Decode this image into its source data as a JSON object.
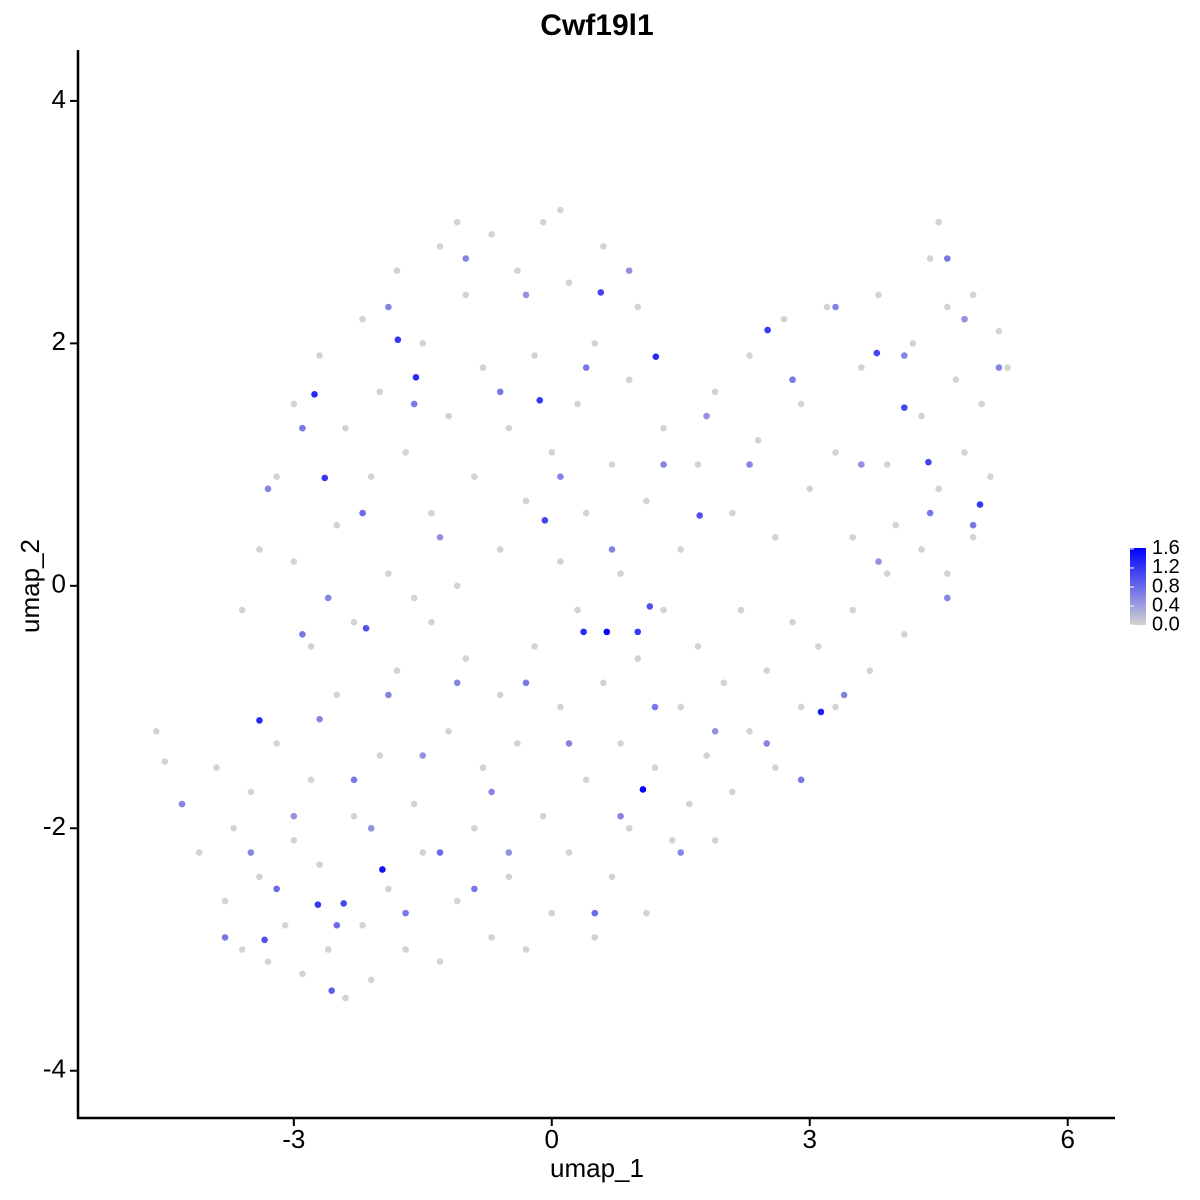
{
  "chart_data": {
    "type": "scatter",
    "title": "Cwf19l1",
    "x_label": "umap_1",
    "y_label": "umap_2",
    "xlim": [
      -5.51,
      6.55
    ],
    "ylim": [
      -4.39,
      4.42
    ],
    "xticks": [
      -3,
      0,
      3,
      6
    ],
    "yticks": [
      -4,
      -2,
      0,
      2,
      4
    ],
    "color_low": "#d3d3d3",
    "color_high": "#0000ff",
    "colorlim": [
      0,
      1.62
    ],
    "colorticks": [
      {
        "value": 0,
        "label": "0.0"
      },
      0.4,
      0.8,
      1.2,
      1.6
    ],
    "x": [
      -4.6,
      -4.5,
      -4.3,
      -4.1,
      -3.9,
      -3.8,
      -3.7,
      -3.6,
      -3.5,
      -3.4,
      -3.3,
      -3.2,
      -3.1,
      -3.0,
      -2.9,
      -2.8,
      -2.7,
      -2.6,
      -2.5,
      -2.4,
      -2.3,
      -2.2,
      -2.1,
      -2.0,
      -1.9,
      -1.8,
      -1.7,
      -1.6,
      -1.5,
      -1.4,
      -1.3,
      -1.2,
      -1.1,
      -1.0,
      -0.9,
      -0.8,
      -0.7,
      -0.6,
      -0.5,
      -0.4,
      -0.3,
      -0.2,
      -0.1,
      0.0,
      0.1,
      0.2,
      0.3,
      0.4,
      0.5,
      0.6,
      0.7,
      0.8,
      0.9,
      1.0,
      1.1,
      1.2,
      1.3,
      1.4,
      1.5,
      1.6,
      1.7,
      1.8,
      1.9,
      2.0,
      2.1,
      2.2,
      2.3,
      2.5,
      2.6,
      2.8,
      2.9,
      3.1,
      3.3,
      3.5,
      3.7,
      3.9,
      4.1,
      4.3,
      4.6,
      4.9,
      -3.6,
      -3.4,
      -3.2,
      -3.0,
      -3.0,
      -2.8,
      -2.7,
      -2.5,
      -2.4,
      -2.3,
      -2.2,
      -2.1,
      -2.0,
      -1.9,
      -1.8,
      -1.7,
      -1.6,
      -1.5,
      -1.4,
      -1.3,
      -1.2,
      -1.1,
      -1.0,
      -0.9,
      -0.8,
      -0.7,
      -0.6,
      -0.5,
      -0.4,
      -0.3,
      -0.2,
      -0.1,
      0.0,
      0.1,
      0.2,
      0.3,
      0.4,
      0.5,
      0.6,
      0.7,
      0.8,
      0.9,
      1.0,
      1.1,
      1.3,
      1.5,
      1.7,
      1.9,
      2.1,
      2.3,
      2.4,
      2.6,
      2.7,
      2.9,
      3.0,
      3.2,
      3.3,
      3.5,
      3.6,
      3.8,
      3.9,
      4.0,
      4.2,
      4.3,
      4.4,
      4.5,
      4.6,
      4.7,
      4.8,
      4.9,
      5.0,
      5.1,
      5.2,
      5.3,
      4.5,
      0.1,
      -1.1,
      -4.3,
      -3.8,
      -3.5,
      -3.2,
      -3.0,
      -2.9,
      -2.7,
      -2.5,
      -2.3,
      -2.1,
      -1.9,
      -1.7,
      -1.5,
      -1.3,
      -1.1,
      -0.9,
      -0.7,
      -0.5,
      -0.3,
      0.2,
      0.5,
      0.8,
      1.2,
      1.5,
      1.9,
      2.5,
      2.9,
      3.4,
      3.8,
      4.6,
      4.9,
      -3.3,
      -2.9,
      -2.6,
      -2.2,
      -1.9,
      -1.6,
      -1.3,
      -1.0,
      -0.6,
      -0.3,
      0.1,
      0.4,
      0.7,
      0.9,
      1.3,
      1.8,
      2.3,
      2.8,
      3.3,
      3.6,
      4.1,
      4.4,
      4.8,
      5.2,
      4.6,
      -1.97,
      1.06,
      0.64,
      0.37,
      1.0,
      -3.4,
      -2.76,
      -2.64,
      -1.79,
      -1.58,
      -0.14,
      0.57,
      1.21,
      2.51,
      3.78,
      4.38,
      4.1,
      4.98,
      3.13,
      -2.72,
      -2.42,
      -3.34,
      -0.08,
      1.14,
      -2.16,
      1.72,
      -2.56
    ],
    "y": [
      -1.2,
      -1.45,
      -1.8,
      -2.2,
      -1.5,
      -2.6,
      -2.0,
      -3.0,
      -1.7,
      -2.4,
      -3.1,
      -1.3,
      -2.8,
      -2.1,
      -3.2,
      -1.6,
      -2.3,
      -3.0,
      -0.9,
      -3.4,
      -1.9,
      -2.8,
      -3.25,
      -1.4,
      -2.5,
      -0.7,
      -3.0,
      -1.8,
      -2.2,
      -0.3,
      -3.1,
      -1.2,
      -2.6,
      -0.6,
      -2.0,
      -1.5,
      -2.9,
      -0.9,
      -2.4,
      -1.3,
      -3.0,
      -0.5,
      -1.9,
      -2.7,
      -1.0,
      -2.2,
      -0.2,
      -1.6,
      -2.9,
      -0.8,
      -2.4,
      -1.3,
      -2.0,
      -0.6,
      -2.7,
      -1.5,
      -0.2,
      -2.1,
      -1.0,
      -1.8,
      -0.5,
      -1.4,
      -2.1,
      -0.8,
      -1.7,
      -0.2,
      -1.2,
      -0.7,
      -1.5,
      -0.3,
      -1.0,
      -0.5,
      -1.0,
      -0.2,
      -0.7,
      0.1,
      -0.4,
      0.3,
      0.1,
      0.4,
      -0.2,
      0.3,
      0.9,
      0.2,
      1.5,
      -0.5,
      1.9,
      0.5,
      1.3,
      -0.3,
      2.2,
      0.9,
      1.6,
      0.1,
      2.6,
      1.1,
      -0.1,
      2.0,
      0.6,
      2.8,
      1.4,
      0.0,
      2.4,
      0.9,
      1.8,
      2.9,
      0.3,
      1.3,
      2.6,
      0.7,
      1.9,
      3.0,
      1.1,
      0.2,
      2.5,
      1.5,
      0.6,
      2.0,
      2.8,
      1.0,
      0.1,
      1.7,
      2.3,
      0.7,
      1.3,
      0.3,
      1.0,
      1.6,
      0.6,
      1.9,
      1.2,
      0.4,
      2.2,
      1.5,
      0.8,
      2.3,
      1.1,
      0.4,
      1.8,
      2.4,
      1.0,
      0.5,
      2.0,
      1.4,
      2.7,
      0.8,
      2.3,
      1.7,
      1.1,
      2.4,
      1.5,
      0.9,
      2.1,
      1.8,
      3.0,
      3.1,
      3.0,
      -1.8,
      -2.9,
      -2.2,
      -2.5,
      -1.9,
      -0.4,
      -1.1,
      -2.8,
      -1.6,
      -2.0,
      -0.9,
      -2.7,
      -1.4,
      -2.2,
      -0.8,
      -2.5,
      -1.7,
      -2.2,
      -0.8,
      -1.3,
      -2.7,
      -1.9,
      -1.0,
      -2.2,
      -1.2,
      -1.3,
      -1.6,
      -0.9,
      0.2,
      -0.1,
      0.5,
      0.8,
      1.3,
      -0.1,
      0.6,
      2.3,
      1.5,
      0.4,
      2.7,
      1.6,
      2.4,
      0.9,
      1.8,
      0.3,
      2.6,
      1.0,
      1.4,
      1.0,
      1.7,
      2.3,
      1.0,
      1.9,
      0.6,
      2.2,
      1.8,
      2.7,
      -2.34,
      -1.68,
      -0.38,
      -0.38,
      -0.38,
      -1.11,
      1.58,
      0.89,
      2.03,
      1.72,
      1.53,
      2.42,
      1.89,
      2.11,
      1.92,
      1.02,
      1.47,
      0.67,
      -1.04,
      -2.63,
      -2.62,
      -2.92,
      0.54,
      -0.17,
      -0.35,
      0.58,
      -3.34
    ],
    "values": [
      0,
      0,
      0,
      0,
      0,
      0,
      0,
      0,
      0,
      0,
      0,
      0,
      0,
      0,
      0,
      0,
      0,
      0,
      0,
      0,
      0,
      0,
      0,
      0,
      0,
      0,
      0,
      0,
      0,
      0,
      0,
      0,
      0,
      0,
      0,
      0,
      0,
      0,
      0,
      0,
      0,
      0,
      0,
      0,
      0,
      0,
      0,
      0,
      0,
      0,
      0,
      0,
      0,
      0,
      0,
      0,
      0,
      0,
      0,
      0,
      0,
      0,
      0,
      0,
      0,
      0,
      0,
      0,
      0,
      0,
      0,
      0,
      0,
      0,
      0,
      0,
      0,
      0,
      0,
      0,
      0,
      0,
      0,
      0,
      0,
      0,
      0,
      0,
      0,
      0,
      0,
      0,
      0,
      0,
      0,
      0,
      0,
      0,
      0,
      0,
      0,
      0,
      0,
      0,
      0,
      0,
      0,
      0,
      0,
      0,
      0,
      0,
      0,
      0,
      0,
      0,
      0,
      0,
      0,
      0,
      0,
      0,
      0,
      0,
      0,
      0,
      0,
      0,
      0,
      0,
      0,
      0,
      0,
      0,
      0,
      0,
      0,
      0,
      0,
      0,
      0,
      0,
      0,
      0,
      0,
      0,
      0,
      0,
      0,
      0,
      0,
      0,
      0,
      0,
      0,
      0,
      0,
      0.6,
      0.7,
      0.6,
      0.8,
      0.5,
      0.7,
      0.6,
      0.8,
      0.7,
      0.5,
      0.6,
      0.7,
      0.5,
      0.8,
      0.6,
      0.7,
      0.6,
      0.5,
      0.7,
      0.6,
      0.8,
      0.6,
      0.7,
      0.6,
      0.5,
      0.6,
      0.7,
      0.6,
      0.5,
      0.6,
      0.7,
      0.6,
      0.7,
      0.6,
      0.8,
      0.6,
      0.7,
      0.5,
      0.6,
      0.7,
      0.5,
      0.6,
      0.7,
      0.6,
      0.5,
      0.6,
      0.5,
      0.6,
      0.7,
      0.6,
      0.5,
      0.6,
      0.7,
      0.5,
      0.6,
      0.7,
      1.5,
      1.6,
      1.6,
      1.3,
      1.2,
      1.3,
      1.3,
      1.2,
      1.2,
      1.3,
      1.2,
      1.1,
      1.3,
      1.2,
      1.1,
      1.1,
      1.1,
      1.2,
      1.4,
      1.2,
      1.1,
      1.0,
      1.1,
      1.0,
      1.0,
      1.0,
      0.9
    ]
  }
}
